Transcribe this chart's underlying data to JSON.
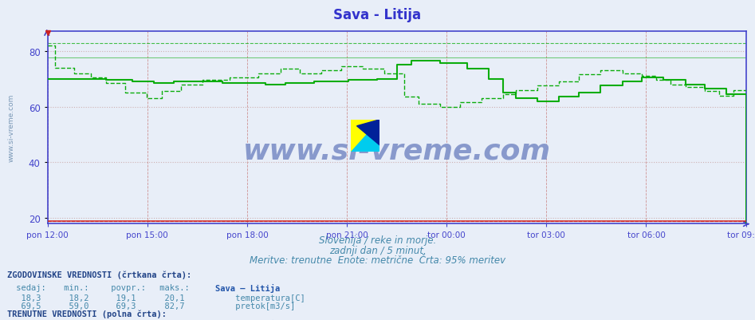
{
  "title": "Sava - Litija",
  "title_color": "#3333cc",
  "bg_color": "#e8eef8",
  "plot_bg_color": "#e8eef8",
  "axis_color": "#4444cc",
  "grid_v_color": "#cc8888",
  "grid_h_color": "#ccaaaa",
  "temp_color": "#cc2222",
  "flow_color": "#00aa00",
  "watermark_text": "www.si-vreme.com",
  "watermark_color": "#8899cc",
  "sub1": "Slovenija / reke in morje.",
  "sub2": "zadnji dan / 5 minut.",
  "sub3": "Meritve: trenutne  Enote: metrične  Črta: 95% meritev",
  "sub_color": "#4488aa",
  "table_color": "#4488aa",
  "label_color": "#2255aa",
  "table_bold_color": "#224488",
  "ylim": [
    18,
    87
  ],
  "yticks": [
    20,
    40,
    60,
    80
  ],
  "x_tick_labels": [
    "pon 12:00",
    "pon 15:00",
    "pon 18:00",
    "pon 21:00",
    "tor 00:00",
    "tor 03:00",
    "tor 06:00",
    "tor 09:00"
  ],
  "n_points": 289,
  "flow_hist_max_line": 82.7,
  "flow_curr_max_line": 77.6,
  "temp_curr_approx": 19.1
}
